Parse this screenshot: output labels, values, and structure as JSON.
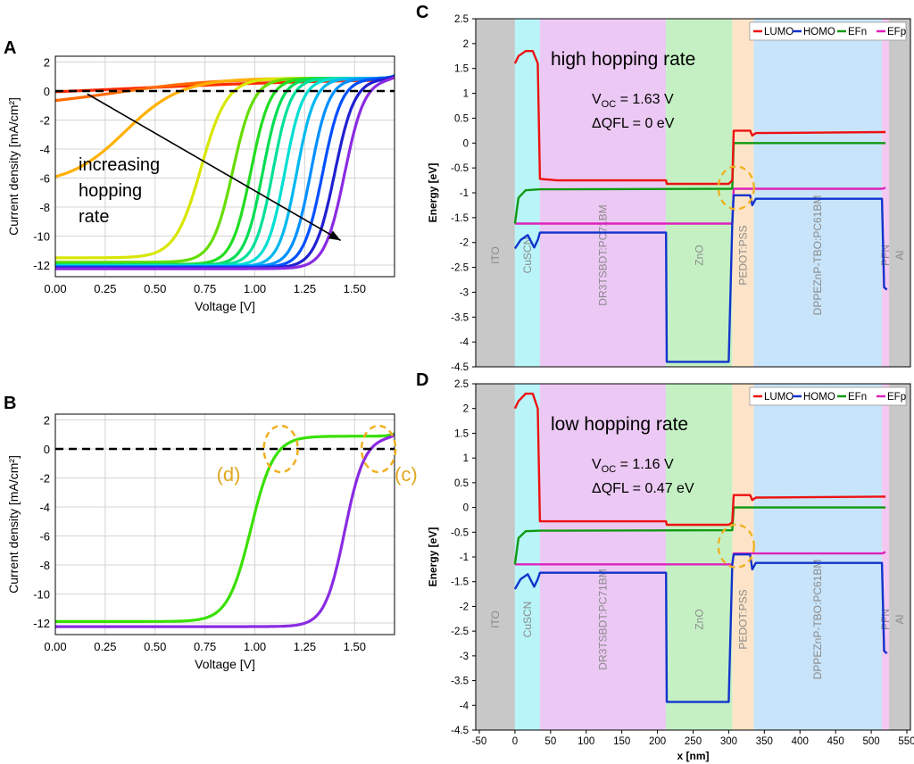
{
  "chart_data": [
    {
      "panel": "A",
      "type": "line",
      "xlabel": "Voltage [V]",
      "ylabel": "Current density [mA/cm²]",
      "xlim": [
        0,
        1.7
      ],
      "ylim": [
        -12.8,
        2.4
      ],
      "xticks": [
        "0.00",
        "0.25",
        "0.50",
        "0.75",
        "1.00",
        "1.25",
        "1.50"
      ],
      "yticks": [
        "2",
        "0",
        "-2",
        "-4",
        "-6",
        "-8",
        "-10",
        "-12"
      ],
      "annotation": [
        "increasing",
        "hopping",
        "rate"
      ],
      "arrow": {
        "from": [
          0.16,
          -0.2
        ],
        "to": [
          1.43,
          -10.3
        ]
      },
      "zero_line": true,
      "series": [
        {
          "name": "c1",
          "color": "#ff2a00",
          "isc": -0.05,
          "v50": 0.4,
          "w": 0.55,
          "jsat": 0.88,
          "voc": 1.64
        },
        {
          "name": "c2",
          "color": "#ff6a00",
          "isc": -0.65,
          "v50": 0.3,
          "w": 0.25,
          "jsat": 0.88,
          "voc": 1.64
        },
        {
          "name": "c3",
          "color": "#ffb000",
          "isc": -5.9,
          "v50": 0.35,
          "w": 0.14,
          "jsat": 0.88,
          "voc": 1.64
        },
        {
          "name": "c4",
          "color": "#d8e600",
          "isc": -11.5,
          "v50": 0.73,
          "w": 0.065,
          "jsat": 0.88,
          "voc": 1.64
        },
        {
          "name": "c5",
          "color": "#66dd00",
          "isc": -11.8,
          "v50": 0.89,
          "w": 0.052,
          "jsat": 0.88,
          "voc": 1.64
        },
        {
          "name": "c6",
          "color": "#22dd22",
          "isc": -11.95,
          "v50": 0.98,
          "w": 0.048,
          "jsat": 0.88,
          "voc": 1.64
        },
        {
          "name": "c7",
          "color": "#00dd55",
          "isc": -12.0,
          "v50": 1.04,
          "w": 0.046,
          "jsat": 0.88,
          "voc": 1.64
        },
        {
          "name": "c8",
          "color": "#00e09a",
          "isc": -12.0,
          "v50": 1.09,
          "w": 0.045,
          "jsat": 0.88,
          "voc": 1.64
        },
        {
          "name": "c9",
          "color": "#00dfd2",
          "isc": -12.05,
          "v50": 1.15,
          "w": 0.045,
          "jsat": 0.88,
          "voc": 1.64
        },
        {
          "name": "c10",
          "color": "#00b8f0",
          "isc": -12.1,
          "v50": 1.21,
          "w": 0.045,
          "jsat": 0.88,
          "voc": 1.64
        },
        {
          "name": "c11",
          "color": "#0090ff",
          "isc": -12.1,
          "v50": 1.28,
          "w": 0.046,
          "jsat": 0.88,
          "voc": 1.64
        },
        {
          "name": "c12",
          "color": "#0050ff",
          "isc": -12.15,
          "v50": 1.34,
          "w": 0.048,
          "jsat": 0.88,
          "voc": 1.64
        },
        {
          "name": "c13",
          "color": "#2020d0",
          "isc": -12.2,
          "v50": 1.4,
          "w": 0.05,
          "jsat": 0.88,
          "voc": 1.64
        },
        {
          "name": "c14",
          "color": "#8a2be2",
          "isc": -12.25,
          "v50": 1.45,
          "w": 0.05,
          "jsat": 0.88,
          "voc": 1.64
        }
      ]
    },
    {
      "panel": "B",
      "type": "line",
      "xlabel": "Voltage [V]",
      "ylabel": "Current density [mA/cm²]",
      "xlim": [
        0,
        1.7
      ],
      "ylim": [
        -12.8,
        2.4
      ],
      "xticks": [
        "0.00",
        "0.25",
        "0.50",
        "0.75",
        "1.00",
        "1.25",
        "1.50"
      ],
      "yticks": [
        "2",
        "0",
        "-2",
        "-4",
        "-6",
        "-8",
        "-10",
        "-12"
      ],
      "zero_line": true,
      "markers": [
        {
          "label": "(d)",
          "x": 1.13,
          "y": 0
        },
        {
          "label": "(c)",
          "x": 1.62,
          "y": 0
        }
      ],
      "series": [
        {
          "name": "low hopping rate",
          "color": "#39e000",
          "isc": -11.9,
          "v50": 0.98,
          "w": 0.058,
          "jsat": 0.88,
          "voc": 1.64
        },
        {
          "name": "high hopping rate",
          "color": "#8a2be2",
          "isc": -12.25,
          "v50": 1.45,
          "w": 0.05,
          "jsat": 0.88,
          "voc": 1.64
        }
      ]
    },
    {
      "panel": "C",
      "type": "line",
      "title": "high hopping rate",
      "ylabel": "Energy [eV]",
      "xlim": [
        -55,
        555
      ],
      "ylim": [
        -4.5,
        2.5
      ],
      "yticks": [
        "2.5",
        "2",
        "1.5",
        "1",
        "0.5",
        "0",
        "-0.5",
        "-1",
        "-1.5",
        "-2",
        "-2.5",
        "-3",
        "-3.5",
        "-4",
        "-4.5"
      ],
      "voc": "1.63 V",
      "dqfl": "0 eV",
      "legend": [
        "LUMO",
        "HOMO",
        "EFn",
        "EFp"
      ],
      "layers": [
        {
          "name": "ITO",
          "x0": -55,
          "x1": 0,
          "color": "#c8c8c8"
        },
        {
          "name": "CuSCN",
          "x0": 0,
          "x1": 35,
          "color": "#b8f4f8"
        },
        {
          "name": "DR3TSBDT:PC71BM",
          "x0": 35,
          "x1": 212,
          "color": "#ecc8f4"
        },
        {
          "name": "ZnO",
          "x0": 212,
          "x1": 305,
          "color": "#c4f0c4"
        },
        {
          "name": "PEDOT:PSS",
          "x0": 305,
          "x1": 335,
          "color": "#fde4c8"
        },
        {
          "name": "DPPEZnP-TBO:PC61BM",
          "x0": 335,
          "x1": 515,
          "color": "#c8e4fa"
        },
        {
          "name": "PFN",
          "x0": 515,
          "x1": 525,
          "color": "#f4c8f0"
        },
        {
          "name": "Al",
          "x0": 525,
          "x1": 555,
          "color": "#c8c8c8"
        }
      ],
      "lines": {
        "LUMO": {
          "color": "#ee1111",
          "points": [
            [
              0,
              1.6
            ],
            [
              5,
              1.75
            ],
            [
              15,
              1.85
            ],
            [
              25,
              1.85
            ],
            [
              32,
              1.6
            ],
            [
              35,
              -0.72
            ],
            [
              60,
              -0.75
            ],
            [
              212,
              -0.75
            ],
            [
              213,
              -0.82
            ],
            [
              300,
              -0.82
            ],
            [
              305,
              -0.75
            ],
            [
              307,
              0.25
            ],
            [
              330,
              0.25
            ],
            [
              333,
              0.15
            ],
            [
              338,
              0.2
            ],
            [
              515,
              0.22
            ],
            [
              520,
              0.22
            ]
          ]
        },
        "HOMO": {
          "color": "#1133cc",
          "points": [
            [
              0,
              -2.12
            ],
            [
              8,
              -1.95
            ],
            [
              18,
              -1.85
            ],
            [
              27,
              -2.1
            ],
            [
              32,
              -1.95
            ],
            [
              35,
              -1.8
            ],
            [
              212,
              -1.8
            ],
            [
              213,
              -4.4
            ],
            [
              300,
              -4.4
            ],
            [
              305,
              -1.62
            ],
            [
              307,
              -1.05
            ],
            [
              330,
              -1.05
            ],
            [
              333,
              -1.25
            ],
            [
              338,
              -1.12
            ],
            [
              515,
              -1.12
            ],
            [
              518,
              -2.9
            ],
            [
              522,
              -2.95
            ]
          ]
        },
        "EFn": {
          "color": "#119911",
          "points": [
            [
              0,
              -1.62
            ],
            [
              5,
              -1.1
            ],
            [
              15,
              -0.95
            ],
            [
              35,
              -0.93
            ],
            [
              305,
              -0.92
            ],
            [
              307,
              0.0
            ],
            [
              520,
              0.0
            ]
          ]
        },
        "EFp": {
          "color": "#dd22bb",
          "points": [
            [
              0,
              -1.62
            ],
            [
              305,
              -1.62
            ],
            [
              307,
              -0.92
            ],
            [
              515,
              -0.92
            ],
            [
              520,
              -0.9
            ]
          ]
        }
      },
      "circle": {
        "x": 308,
        "y": -0.9
      }
    },
    {
      "panel": "D",
      "type": "line",
      "title": "low hopping rate",
      "xlabel": "x [nm]",
      "ylabel": "Energy [eV]",
      "xlim": [
        -55,
        555
      ],
      "ylim": [
        -4.5,
        2.5
      ],
      "xticks": [
        "-50",
        "0",
        "50",
        "100",
        "150",
        "200",
        "250",
        "300",
        "350",
        "400",
        "450",
        "500",
        "550"
      ],
      "yticks": [
        "2.5",
        "2",
        "1.5",
        "1",
        "0.5",
        "0",
        "-0.5",
        "-1",
        "-1.5",
        "-2",
        "-2.5",
        "-3",
        "-3.5",
        "-4",
        "-4.5"
      ],
      "voc": "1.16 V",
      "dqfl": "0.47 eV",
      "legend": [
        "LUMO",
        "HOMO",
        "EFn",
        "EFp"
      ],
      "lines": {
        "LUMO": {
          "color": "#ee1111",
          "points": [
            [
              0,
              2.0
            ],
            [
              5,
              2.15
            ],
            [
              15,
              2.3
            ],
            [
              25,
              2.3
            ],
            [
              32,
              2.0
            ],
            [
              35,
              -0.28
            ],
            [
              60,
              -0.28
            ],
            [
              212,
              -0.28
            ],
            [
              213,
              -0.35
            ],
            [
              300,
              -0.35
            ],
            [
              305,
              -0.3
            ],
            [
              307,
              0.25
            ],
            [
              330,
              0.25
            ],
            [
              333,
              0.15
            ],
            [
              338,
              0.2
            ],
            [
              515,
              0.22
            ],
            [
              520,
              0.22
            ]
          ]
        },
        "HOMO": {
          "color": "#1133cc",
          "points": [
            [
              0,
              -1.65
            ],
            [
              8,
              -1.45
            ],
            [
              18,
              -1.35
            ],
            [
              27,
              -1.6
            ],
            [
              32,
              -1.45
            ],
            [
              35,
              -1.32
            ],
            [
              212,
              -1.32
            ],
            [
              213,
              -3.93
            ],
            [
              300,
              -3.93
            ],
            [
              305,
              -1.15
            ],
            [
              307,
              -0.95
            ],
            [
              330,
              -0.95
            ],
            [
              333,
              -1.25
            ],
            [
              338,
              -1.12
            ],
            [
              515,
              -1.12
            ],
            [
              518,
              -2.9
            ],
            [
              522,
              -2.95
            ]
          ]
        },
        "EFn": {
          "color": "#119911",
          "points": [
            [
              0,
              -1.15
            ],
            [
              5,
              -0.62
            ],
            [
              15,
              -0.48
            ],
            [
              35,
              -0.47
            ],
            [
              305,
              -0.46
            ],
            [
              307,
              0.0
            ],
            [
              520,
              0.0
            ]
          ]
        },
        "EFp": {
          "color": "#dd22bb",
          "points": [
            [
              0,
              -1.15
            ],
            [
              305,
              -1.15
            ],
            [
              307,
              -0.93
            ],
            [
              515,
              -0.93
            ],
            [
              520,
              -0.9
            ]
          ]
        }
      },
      "circle": {
        "x": 308,
        "y": -0.78
      }
    }
  ],
  "labels": {
    "A": "A",
    "B": "B",
    "C": "C",
    "D": "D",
    "voc_prefix": "V",
    "voc_sub": "OC",
    "dqfl_prefix": "ΔQFL = ",
    "a_note_1": "increasing",
    "a_note_2": "hopping",
    "a_note_3": "rate",
    "d_marker": "(d)",
    "c_marker": "(c)",
    "c_title": "high hopping rate",
    "d_title": "low hopping rate",
    "energy_label": "Energy [eV]",
    "x_label": "x [nm]",
    "voltage_label": "Voltage [V]",
    "current_label": "Current density [mA/cm²]"
  }
}
